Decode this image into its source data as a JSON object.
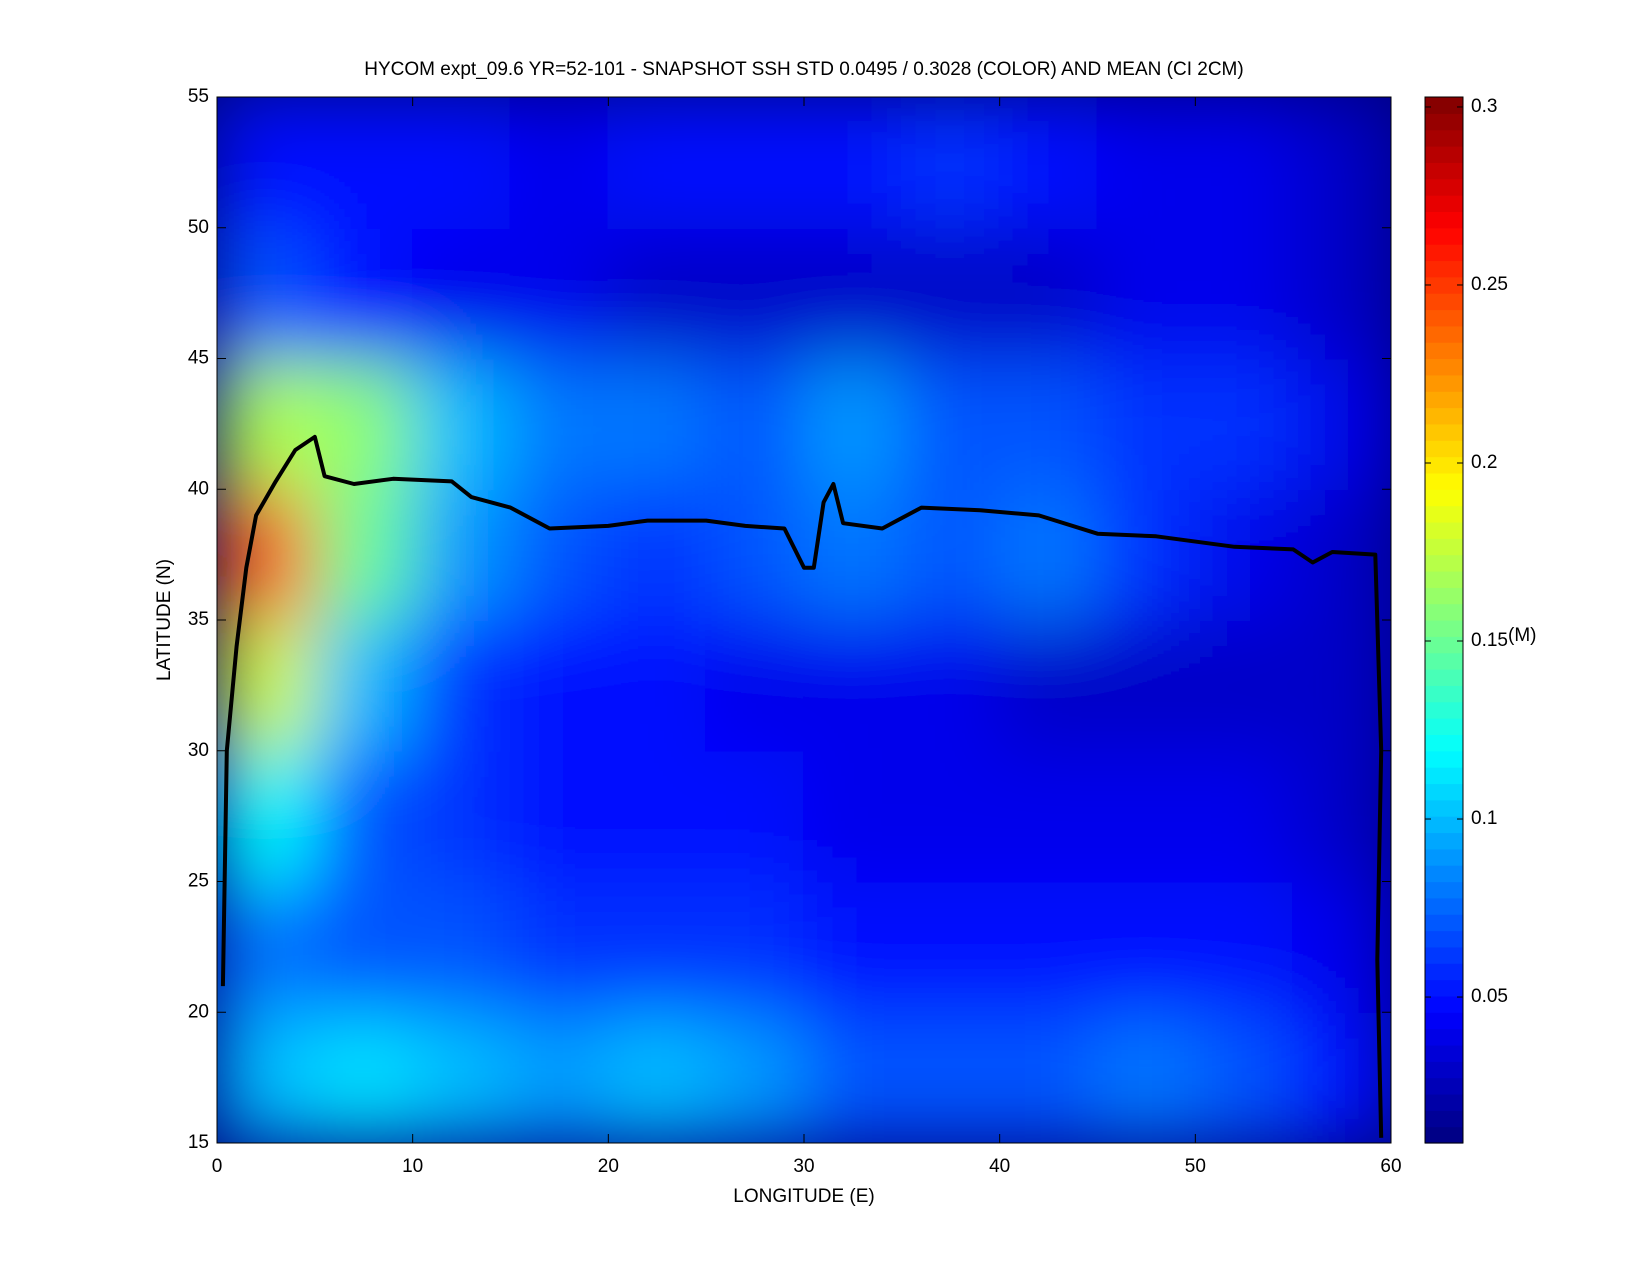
{
  "chart_data": {
    "type": "heatmap",
    "title": "HYCOM expt_09.6 YR=52-101 - SNAPSHOT SSH STD 0.0495 / 0.3028 (COLOR) AND MEAN (CI 2CM)",
    "x_label": "LONGITUDE (E)",
    "y_label": "LATITUDE (N)",
    "colorbar_label": "(M)",
    "colormap": "jet",
    "xlim": [
      0,
      60
    ],
    "ylim": [
      15,
      55
    ],
    "xticks": [
      0,
      10,
      20,
      30,
      40,
      50,
      60
    ],
    "yticks": [
      15,
      20,
      25,
      30,
      35,
      40,
      45,
      50,
      55
    ],
    "clim": [
      0.009,
      0.3028
    ],
    "cticks": [
      0.05,
      0.1,
      0.15,
      0.2,
      0.25,
      0.3
    ],
    "xbins": [
      0,
      5,
      10,
      15,
      20,
      25,
      30,
      35,
      40,
      45,
      50,
      55,
      60
    ],
    "ybins": [
      15,
      20,
      25,
      30,
      35,
      40,
      45,
      50,
      55
    ],
    "z": [
      [
        0.1,
        0.11,
        0.1,
        0.09,
        0.1,
        0.09,
        0.07,
        0.07,
        0.07,
        0.08,
        0.07,
        0.05
      ],
      [
        0.08,
        0.07,
        0.07,
        0.06,
        0.06,
        0.06,
        0.05,
        0.05,
        0.05,
        0.05,
        0.05,
        0.04
      ],
      [
        0.12,
        0.07,
        0.06,
        0.05,
        0.05,
        0.05,
        0.04,
        0.04,
        0.04,
        0.04,
        0.04,
        0.03
      ],
      [
        0.18,
        0.1,
        0.06,
        0.05,
        0.05,
        0.04,
        0.04,
        0.04,
        0.03,
        0.03,
        0.03,
        0.03
      ],
      [
        0.24,
        0.15,
        0.09,
        0.07,
        0.06,
        0.07,
        0.08,
        0.07,
        0.08,
        0.06,
        0.04,
        0.03
      ],
      [
        0.17,
        0.16,
        0.1,
        0.08,
        0.08,
        0.07,
        0.09,
        0.07,
        0.07,
        0.06,
        0.06,
        0.04
      ],
      [
        0.07,
        0.05,
        0.04,
        0.04,
        0.03,
        0.03,
        0.03,
        0.03,
        0.03,
        0.04,
        0.04,
        0.03
      ],
      [
        0.05,
        0.05,
        0.05,
        0.04,
        0.05,
        0.05,
        0.05,
        0.06,
        0.05,
        0.04,
        0.04,
        0.03
      ]
    ],
    "contour": {
      "x": [
        0.3,
        0.5,
        1,
        1.5,
        2,
        3,
        4,
        5,
        5.5,
        7,
        9,
        12,
        13,
        15,
        17,
        20,
        22,
        25,
        27,
        29,
        30,
        30.5,
        31,
        31.5,
        32,
        34,
        36,
        39,
        42,
        45,
        48,
        52,
        55,
        56,
        57,
        59.2,
        59.5,
        59.3,
        59.5
      ],
      "y": [
        21,
        30,
        34,
        37,
        39,
        40.3,
        41.5,
        42,
        40.5,
        40.2,
        40.4,
        40.3,
        39.7,
        39.3,
        38.5,
        38.6,
        38.8,
        38.8,
        38.6,
        38.5,
        37,
        37,
        39.5,
        40.2,
        38.7,
        38.5,
        39.3,
        39.2,
        39,
        38.3,
        38.2,
        37.8,
        37.7,
        37.2,
        37.6,
        37.5,
        30,
        22,
        15.2
      ]
    }
  }
}
